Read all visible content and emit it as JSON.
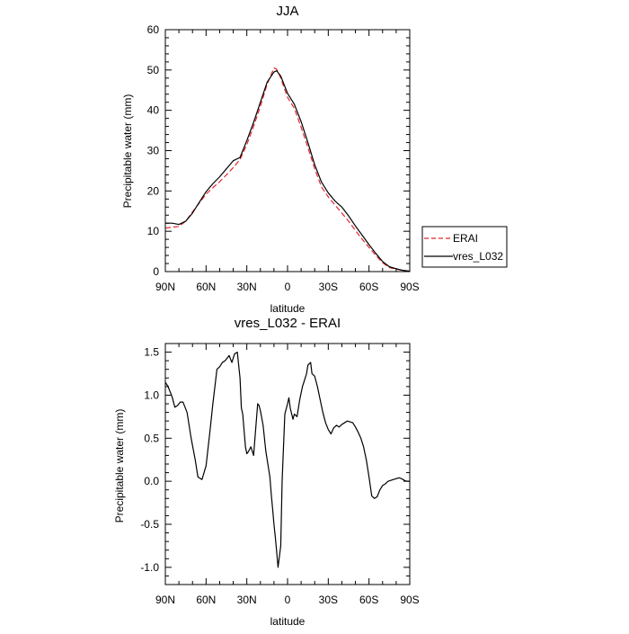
{
  "chart_data": [
    {
      "type": "line",
      "title": "JJA",
      "xlabel": "latitude",
      "ylabel": "Precipitable water (mm)",
      "xlim": [
        90,
        -90
      ],
      "ylim": [
        0,
        60
      ],
      "x_ticks": [
        90,
        60,
        30,
        0,
        -30,
        -60,
        -90
      ],
      "x_tick_labels": [
        "90N",
        "60N",
        "30N",
        "0",
        "30S",
        "60S",
        "90S"
      ],
      "y_ticks": [
        0,
        10,
        20,
        30,
        40,
        50,
        60
      ],
      "y_tick_labels": [
        "0",
        "10",
        "20",
        "30",
        "40",
        "50",
        "60"
      ],
      "legend_position": "right",
      "grid": false,
      "series": [
        {
          "name": "ERAI",
          "color": "#e3262c",
          "style": "dashed",
          "x": [
            90,
            85,
            80,
            75,
            70,
            65,
            60,
            55,
            50,
            45,
            40,
            35,
            30,
            25,
            20,
            15,
            10,
            8,
            5,
            0,
            -5,
            -10,
            -15,
            -20,
            -25,
            -30,
            -35,
            -40,
            -45,
            -50,
            -55,
            -60,
            -65,
            -70,
            -75,
            -80,
            -85,
            -90
          ],
          "y": [
            10.8,
            11.0,
            11.2,
            12.5,
            14.8,
            17.0,
            19.2,
            20.8,
            22.3,
            24.0,
            25.8,
            27.8,
            31.5,
            36.0,
            41.0,
            46.5,
            50.5,
            50.2,
            48.0,
            43.2,
            40.5,
            35.8,
            30.8,
            25.5,
            21.0,
            18.5,
            16.5,
            14.5,
            12.5,
            10.2,
            8.0,
            6.0,
            4.0,
            2.2,
            1.0,
            0.6,
            0.3,
            0.1
          ]
        },
        {
          "name": "vres_L032",
          "color": "#000000",
          "style": "solid",
          "x": [
            90,
            85,
            80,
            78,
            75,
            70,
            65,
            60,
            55,
            50,
            45,
            40,
            35,
            30,
            25,
            20,
            15,
            10,
            8,
            5,
            0,
            -5,
            -10,
            -15,
            -20,
            -25,
            -30,
            -35,
            -40,
            -45,
            -50,
            -55,
            -60,
            -65,
            -70,
            -75,
            -80,
            -85,
            -90
          ],
          "y": [
            12.0,
            12.0,
            11.7,
            12.0,
            12.5,
            14.5,
            17.2,
            19.8,
            21.8,
            23.5,
            25.5,
            27.5,
            28.3,
            32.5,
            37.0,
            42.0,
            47.0,
            49.5,
            49.8,
            48.5,
            44.2,
            41.5,
            37.2,
            32.0,
            26.5,
            22.2,
            19.5,
            17.5,
            16.0,
            13.8,
            11.3,
            9.0,
            6.7,
            4.5,
            2.5,
            1.2,
            0.7,
            0.3,
            0.1
          ]
        }
      ]
    },
    {
      "type": "line",
      "title": "vres_L032 - ERAI",
      "xlabel": "latitude",
      "ylabel": "Precipitable water (mm)",
      "xlim": [
        90,
        -90
      ],
      "ylim": [
        -1.2,
        1.6
      ],
      "x_ticks": [
        90,
        60,
        30,
        0,
        -30,
        -60,
        -90
      ],
      "x_tick_labels": [
        "90N",
        "60N",
        "30N",
        "0",
        "30S",
        "60S",
        "90S"
      ],
      "y_ticks": [
        1.5,
        1.0,
        0.5,
        0.0,
        -0.5,
        -1.0
      ],
      "y_tick_labels": [
        "1.5",
        "1.0",
        "0.5",
        "0.0",
        "-0.5",
        "-1.0"
      ],
      "grid": false,
      "series": [
        {
          "color": "#000000",
          "style": "solid",
          "x": [
            90,
            88,
            85,
            83,
            81,
            79,
            77,
            74,
            71,
            68,
            66,
            63,
            60,
            57,
            55,
            52,
            50,
            48,
            46,
            45,
            43,
            41,
            39,
            37,
            35,
            34,
            33,
            31,
            30,
            29,
            27,
            25,
            24,
            22,
            21,
            20,
            18,
            16,
            14,
            13,
            12,
            11,
            10,
            9,
            8,
            7,
            5,
            4,
            2,
            0,
            -1,
            -2,
            -4,
            -5,
            -7,
            -9,
            -11,
            -13,
            -14,
            -15,
            -17,
            -18,
            -20,
            -22,
            -24,
            -26,
            -28,
            -30,
            -32,
            -34,
            -36,
            -38,
            -40,
            -42,
            -44,
            -46,
            -48,
            -50,
            -52,
            -54,
            -56,
            -58,
            -60,
            -62,
            -64,
            -66,
            -68,
            -70,
            -72,
            -74,
            -76,
            -78,
            -80,
            -82,
            -84,
            -86,
            -88,
            -90
          ],
          "y": [
            1.15,
            1.1,
            0.98,
            0.86,
            0.88,
            0.92,
            0.92,
            0.8,
            0.5,
            0.25,
            0.05,
            0.02,
            0.18,
            0.6,
            0.9,
            1.3,
            1.33,
            1.38,
            1.4,
            1.42,
            1.46,
            1.38,
            1.48,
            1.5,
            1.2,
            0.85,
            0.78,
            0.4,
            0.32,
            0.34,
            0.4,
            0.3,
            0.5,
            0.9,
            0.88,
            0.82,
            0.65,
            0.35,
            0.15,
            0.05,
            -0.15,
            -0.32,
            -0.5,
            -0.65,
            -0.82,
            -1.0,
            -0.75,
            0.0,
            0.78,
            0.9,
            0.97,
            0.85,
            0.72,
            0.78,
            0.75,
            0.95,
            1.1,
            1.2,
            1.25,
            1.35,
            1.38,
            1.25,
            1.22,
            1.1,
            0.95,
            0.8,
            0.68,
            0.6,
            0.55,
            0.62,
            0.65,
            0.63,
            0.66,
            0.68,
            0.7,
            0.69,
            0.68,
            0.63,
            0.57,
            0.5,
            0.4,
            0.25,
            0.05,
            -0.17,
            -0.2,
            -0.18,
            -0.1,
            -0.05,
            -0.03,
            0.0,
            0.01,
            0.02,
            0.03,
            0.04,
            0.03,
            0.01,
            0.0,
            0.0
          ]
        }
      ]
    }
  ]
}
